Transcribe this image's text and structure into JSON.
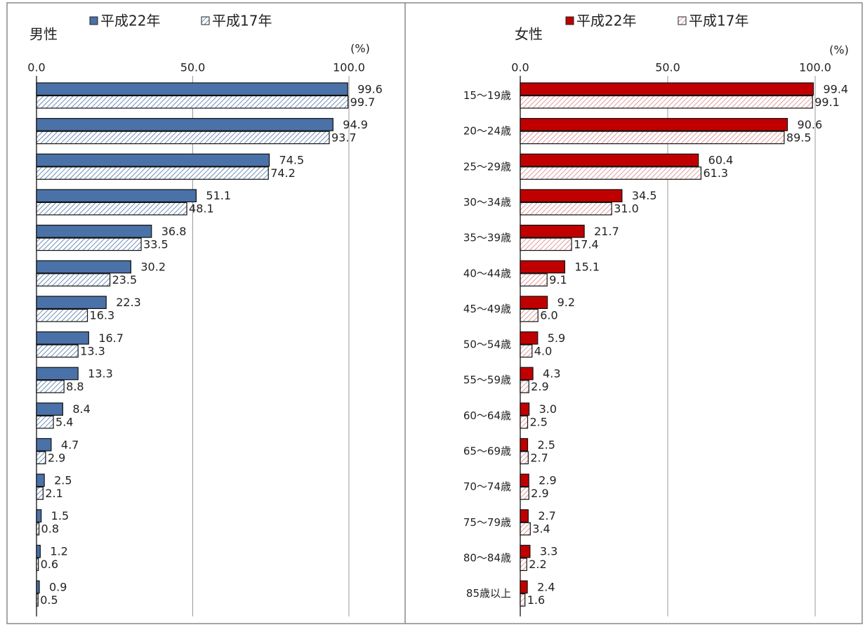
{
  "chart_data": [
    {
      "type": "bar",
      "orientation": "horizontal",
      "title": "男性",
      "unit_label": "(%)",
      "xlim": [
        0,
        100
      ],
      "xticks": [
        {
          "value": 0,
          "label": "0.0"
        },
        {
          "value": 50,
          "label": "50.0"
        },
        {
          "value": 100,
          "label": "100.0"
        }
      ],
      "grid": true,
      "series": [
        {
          "name": "平成22年",
          "color": "#4a72a8",
          "fill_style": "solid",
          "values": [
            99.6,
            94.9,
            74.5,
            51.1,
            36.8,
            30.2,
            22.3,
            16.7,
            13.3,
            8.4,
            4.7,
            2.5,
            1.5,
            1.2,
            0.9
          ],
          "value_labels": [
            "99.6",
            "94.9",
            "74.5",
            "51.1",
            "36.8",
            "30.2",
            "22.3",
            "16.7",
            "13.3",
            "8.4",
            "4.7",
            "2.5",
            "1.5",
            "1.2",
            "0.9"
          ]
        },
        {
          "name": "平成17年",
          "color": "#4a72a8",
          "fill_style": "hatched",
          "values": [
            99.7,
            93.7,
            74.2,
            48.1,
            33.5,
            23.5,
            16.3,
            13.3,
            8.8,
            5.4,
            2.9,
            2.1,
            0.8,
            0.6,
            0.5
          ],
          "value_labels": [
            "99.7",
            "93.7",
            "74.2",
            "48.1",
            "33.5",
            "23.5",
            "16.3",
            "13.3",
            "8.8",
            "5.4",
            "2.9",
            "2.1",
            "0.8",
            "0.6",
            "0.5"
          ]
        }
      ]
    },
    {
      "type": "bar",
      "orientation": "horizontal",
      "title": "女性",
      "unit_label": "(%)",
      "xlim": [
        0,
        100
      ],
      "xticks": [
        {
          "value": 0,
          "label": "0.0"
        },
        {
          "value": 50,
          "label": "50.0"
        },
        {
          "value": 100,
          "label": "100.0"
        }
      ],
      "grid": true,
      "categories": [
        "15～19歳",
        "20～24歳",
        "25～29歳",
        "30～34歳",
        "35～39歳",
        "40～44歳",
        "45～49歳",
        "50～54歳",
        "55～59歳",
        "60～64歳",
        "65～69歳",
        "70～74歳",
        "75～79歳",
        "80～84歳",
        "85歳以上"
      ],
      "series": [
        {
          "name": "平成22年",
          "color": "#c00000",
          "fill_style": "solid",
          "values": [
            99.4,
            90.6,
            60.4,
            34.5,
            21.7,
            15.1,
            9.2,
            5.9,
            4.3,
            3.0,
            2.5,
            2.9,
            2.7,
            3.3,
            2.4
          ],
          "value_labels": [
            "99.4",
            "90.6",
            "60.4",
            "34.5",
            "21.7",
            "15.1",
            "9.2",
            "5.9",
            "4.3",
            "3.0",
            "2.5",
            "2.9",
            "2.7",
            "3.3",
            "2.4"
          ]
        },
        {
          "name": "平成17年",
          "color": "#c00000",
          "fill_style": "hatched",
          "values": [
            99.1,
            89.5,
            61.3,
            31.0,
            17.4,
            9.1,
            6.0,
            4.0,
            2.9,
            2.5,
            2.7,
            2.9,
            3.4,
            2.2,
            1.6
          ],
          "value_labels": [
            "99.1",
            "89.5",
            "61.3",
            "31.0",
            "17.4",
            "9.1",
            "6.0",
            "4.0",
            "2.9",
            "2.5",
            "2.7",
            "2.9",
            "3.4",
            "2.2",
            "1.6"
          ]
        }
      ]
    }
  ]
}
